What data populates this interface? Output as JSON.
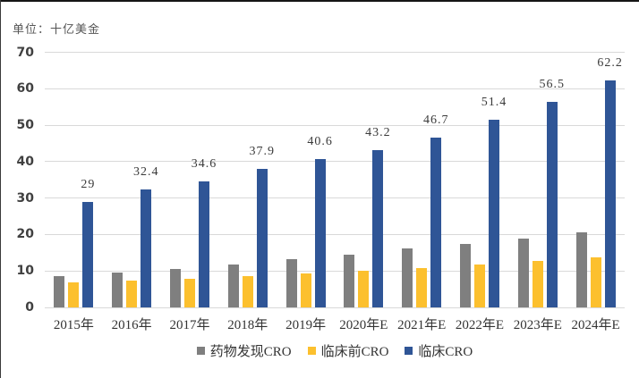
{
  "chart_data": {
    "type": "bar",
    "title": "",
    "unit": "单位：十亿美金",
    "categories": [
      "2015年",
      "2016年",
      "2017年",
      "2018年",
      "2019年",
      "2020年E",
      "2021年E",
      "2022年E",
      "2023年E",
      "2024年E"
    ],
    "series": [
      {
        "id": "drug-discovery-cro",
        "name": "药物发现CRO",
        "color": "#7F7F7F",
        "values": [
          8.6,
          9.6,
          10.5,
          11.7,
          13.2,
          14.4,
          16.1,
          17.3,
          18.9,
          20.5
        ]
      },
      {
        "id": "preclinical-cro",
        "name": "临床前CRO",
        "color": "#FCC02E",
        "values": [
          6.9,
          7.3,
          7.9,
          8.7,
          9.3,
          10.0,
          10.9,
          11.8,
          12.7,
          13.7
        ]
      },
      {
        "id": "clinical-cro",
        "name": "临床CRO",
        "color": "#2F5596",
        "values": [
          29,
          32.4,
          34.6,
          37.9,
          40.6,
          43.2,
          46.7,
          51.4,
          56.5,
          62.2
        ],
        "data_labels": [
          "29",
          "32.4",
          "34.6",
          "37.9",
          "40.6",
          "43.2",
          "46.7",
          "51.4",
          "56.5",
          "62.2"
        ]
      }
    ],
    "ylim": [
      0,
      70
    ],
    "ytick_step": 10,
    "yticks": [
      "0",
      "10",
      "20",
      "30",
      "40",
      "50",
      "60",
      "70"
    ],
    "xlabel": "",
    "ylabel": "",
    "grid": true,
    "gridline_color": "#D9D9D9",
    "axis_label_color": "#404040",
    "legend_position": "bottom"
  }
}
